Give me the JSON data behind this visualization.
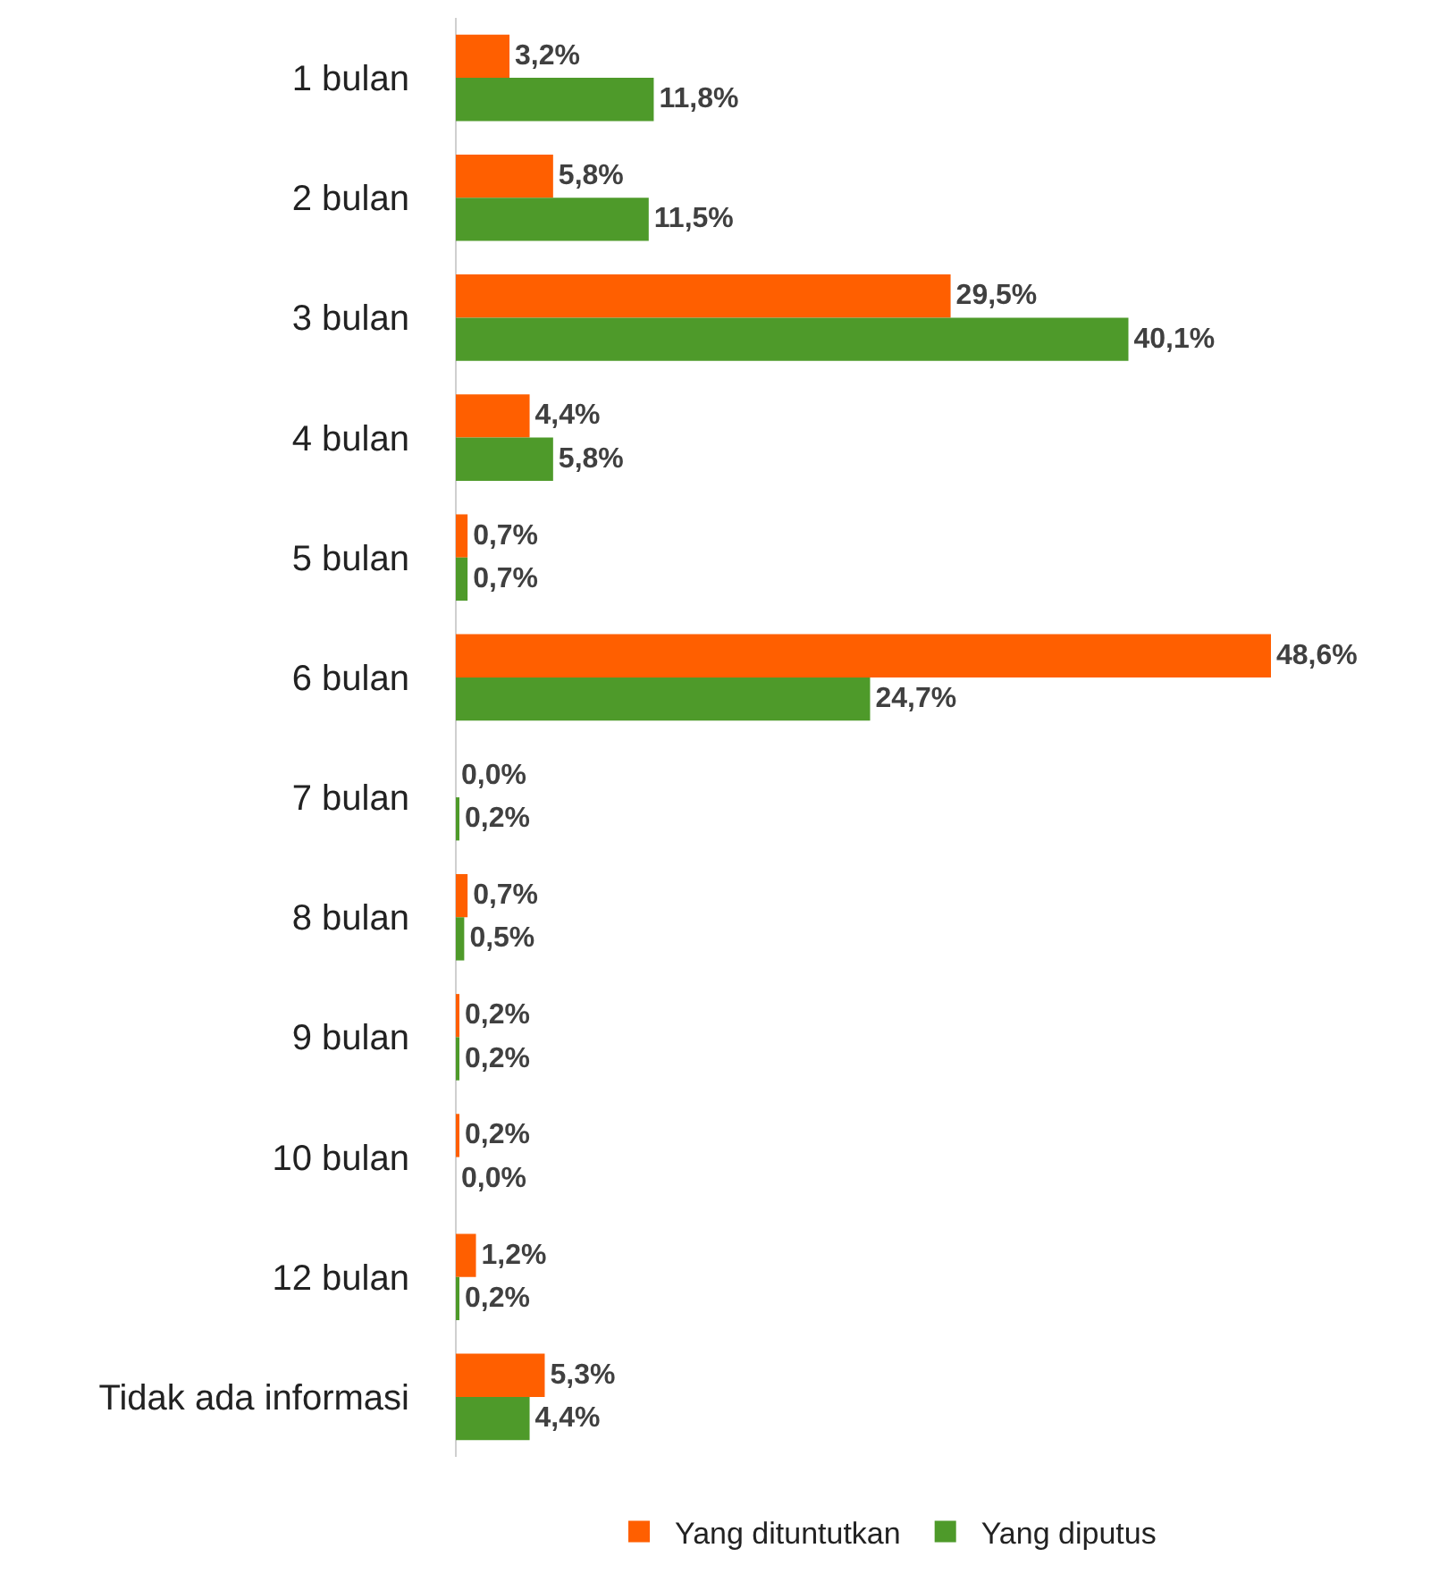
{
  "chart_data": {
    "type": "bar",
    "orientation": "horizontal",
    "legend": "bottom",
    "categories": [
      "1 bulan",
      "2 bulan",
      "3 bulan",
      "4 bulan",
      "5 bulan",
      "6 bulan",
      "7 bulan",
      "8 bulan",
      "9 bulan",
      "10 bulan",
      "12 bulan",
      "Tidak ada informasi"
    ],
    "series": [
      {
        "name": "Yang dituntutkan",
        "color": "#ff5f00",
        "values": [
          3.2,
          5.8,
          29.5,
          4.4,
          0.7,
          48.6,
          0.0,
          0.7,
          0.2,
          0.2,
          1.2,
          5.3
        ],
        "value_labels": [
          "3,2%",
          "5,8%",
          "29,5%",
          "4,4%",
          "0,7%",
          "48,6%",
          "0,0%",
          "0,7%",
          "0,2%",
          "0,2%",
          "1,2%",
          "5,3%"
        ]
      },
      {
        "name": "Yang diputus",
        "color": "#4e9a2a",
        "values": [
          11.8,
          11.5,
          40.1,
          5.8,
          0.7,
          24.7,
          0.2,
          0.5,
          0.2,
          0.0,
          0.2,
          4.4
        ],
        "value_labels": [
          "11,8%",
          "11,5%",
          "40,1%",
          "5,8%",
          "0,7%",
          "24,7%",
          "0,2%",
          "0,5%",
          "0,2%",
          "0,0%",
          "0,2%",
          "4,4%"
        ]
      }
    ]
  }
}
